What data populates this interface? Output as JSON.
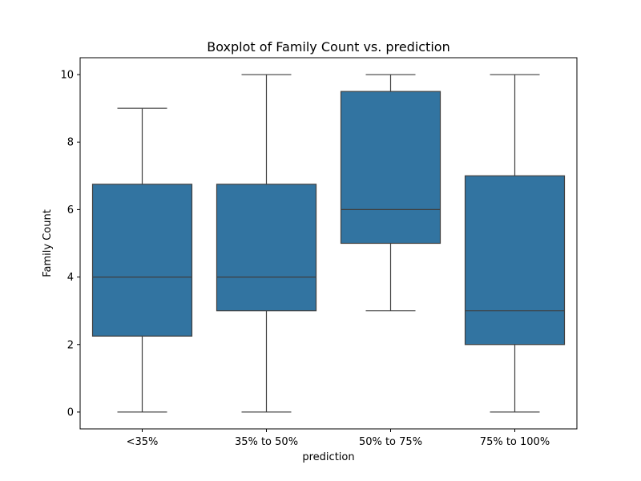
{
  "chart_data": {
    "type": "boxplot",
    "title": "Boxplot of Family Count vs. prediction",
    "xlabel": "prediction",
    "ylabel": "Family Count",
    "categories": [
      "<35%",
      "35% to 50%",
      "50% to 75%",
      "75% to 100%"
    ],
    "boxes": [
      {
        "category": "<35%",
        "whisker_low": 0,
        "q1": 2.25,
        "median": 4,
        "q3": 6.75,
        "whisker_high": 9
      },
      {
        "category": "35% to 50%",
        "whisker_low": 0,
        "q1": 3,
        "median": 4,
        "q3": 6.75,
        "whisker_high": 10
      },
      {
        "category": "50% to 75%",
        "whisker_low": 3,
        "q1": 5,
        "median": 6,
        "q3": 9.5,
        "whisker_high": 10
      },
      {
        "category": "75% to 100%",
        "whisker_low": 0,
        "q1": 2,
        "median": 3,
        "q3": 7,
        "whisker_high": 10
      }
    ],
    "ylim": [
      -0.5,
      10.5
    ],
    "yticks": [
      0,
      2,
      4,
      6,
      8,
      10
    ],
    "grid": false,
    "box_color": "#3274a1",
    "line_color": "#3f3f3f"
  }
}
